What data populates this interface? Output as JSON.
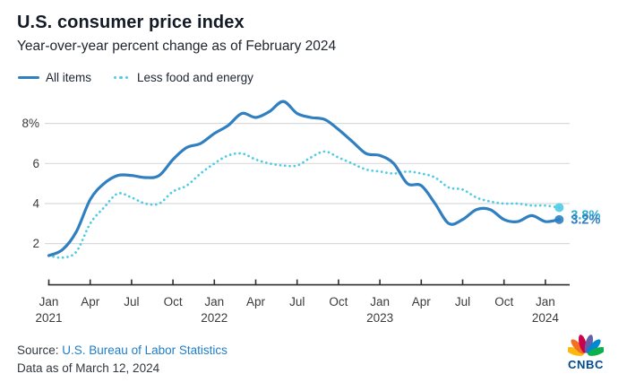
{
  "header": {
    "title": "U.S. consumer price index",
    "subtitle": "Year-over-year percent change as of February 2024"
  },
  "legend": [
    {
      "label": "All items",
      "color": "#2f7fc1",
      "style": "solid"
    },
    {
      "label": "Less food and energy",
      "color": "#4fcbe6",
      "style": "dotted"
    }
  ],
  "chart_data": {
    "type": "line",
    "title": "U.S. consumer price index",
    "subtitle": "Year-over-year percent change as of February 2024",
    "ylabel": "percent change year-over-year",
    "ylim": [
      0,
      9.5
    ],
    "grid": "horizontal",
    "legend_position": "top-left",
    "x": [
      "Jan 2021",
      "Feb 2021",
      "Mar 2021",
      "Apr 2021",
      "May 2021",
      "Jun 2021",
      "Jul 2021",
      "Aug 2021",
      "Sep 2021",
      "Oct 2021",
      "Nov 2021",
      "Dec 2021",
      "Jan 2022",
      "Feb 2022",
      "Mar 2022",
      "Apr 2022",
      "May 2022",
      "Jun 2022",
      "Jul 2022",
      "Aug 2022",
      "Sep 2022",
      "Oct 2022",
      "Nov 2022",
      "Dec 2022",
      "Jan 2023",
      "Feb 2023",
      "Mar 2023",
      "Apr 2023",
      "May 2023",
      "Jun 2023",
      "Jul 2023",
      "Aug 2023",
      "Sep 2023",
      "Oct 2023",
      "Nov 2023",
      "Dec 2023",
      "Jan 2024",
      "Feb 2024"
    ],
    "series": [
      {
        "name": "All items",
        "color": "#2f7fc1",
        "line_style": "solid",
        "end_label": "3.2%",
        "values": [
          1.4,
          1.7,
          2.6,
          4.2,
          5.0,
          5.4,
          5.4,
          5.3,
          5.4,
          6.2,
          6.8,
          7.0,
          7.5,
          7.9,
          8.5,
          8.3,
          8.6,
          9.1,
          8.5,
          8.3,
          8.2,
          7.7,
          7.1,
          6.5,
          6.4,
          6.0,
          5.0,
          4.9,
          4.0,
          3.0,
          3.2,
          3.7,
          3.7,
          3.2,
          3.1,
          3.4,
          3.1,
          3.2
        ]
      },
      {
        "name": "Less food and energy",
        "color": "#4fcbe6",
        "end_label_color": "#2fa9cf",
        "line_style": "dotted",
        "end_label": "3.8%",
        "values": [
          1.4,
          1.3,
          1.6,
          3.0,
          3.8,
          4.5,
          4.3,
          4.0,
          4.0,
          4.6,
          4.9,
          5.5,
          6.0,
          6.4,
          6.5,
          6.2,
          6.0,
          5.9,
          5.9,
          6.3,
          6.6,
          6.3,
          6.0,
          5.7,
          5.6,
          5.5,
          5.6,
          5.5,
          5.3,
          4.8,
          4.7,
          4.3,
          4.1,
          4.0,
          4.0,
          3.9,
          3.9,
          3.8
        ]
      }
    ],
    "y_ticks": [
      {
        "value": 8,
        "label": "8%"
      },
      {
        "value": 6,
        "label": "6"
      },
      {
        "value": 4,
        "label": "4"
      },
      {
        "value": 2,
        "label": "2"
      }
    ],
    "x_ticks": [
      {
        "index": 0,
        "label": "Jan",
        "year": "2021"
      },
      {
        "index": 3,
        "label": "Apr"
      },
      {
        "index": 6,
        "label": "Jul"
      },
      {
        "index": 9,
        "label": "Oct"
      },
      {
        "index": 12,
        "label": "Jan",
        "year": "2022"
      },
      {
        "index": 15,
        "label": "Apr"
      },
      {
        "index": 18,
        "label": "Jul"
      },
      {
        "index": 21,
        "label": "Oct"
      },
      {
        "index": 24,
        "label": "Jan",
        "year": "2023"
      },
      {
        "index": 27,
        "label": "Apr"
      },
      {
        "index": 30,
        "label": "Jul"
      },
      {
        "index": 33,
        "label": "Oct"
      },
      {
        "index": 36,
        "label": "Jan",
        "year": "2024"
      }
    ]
  },
  "colors": {
    "all_items": "#2f7fc1",
    "core": "#4fcbe6",
    "core_text": "#2fa9cf",
    "gridline": "#d9d9d9",
    "axis": "#2e2e2e",
    "tick_text": "#3a3a3a"
  },
  "footer": {
    "source_prefix": "Source: ",
    "source_link": "U.S. Bureau of Labor Statistics",
    "data_as_of": "Data as of March 12, 2024"
  },
  "logo": {
    "text": "CNBC",
    "feather_colors": [
      "#FCB711",
      "#F37021",
      "#CC004C",
      "#6460AA",
      "#0089D0",
      "#0DB14B"
    ]
  }
}
